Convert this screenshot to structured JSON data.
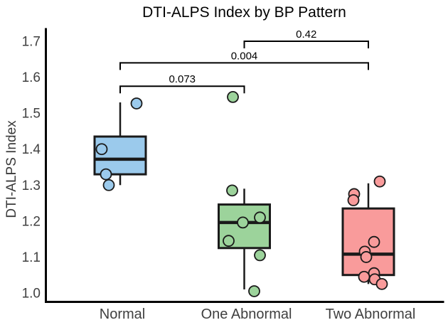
{
  "chart_data": {
    "type": "boxplot",
    "title": "DTI-ALPS Index by BP Pattern",
    "xlabel": "",
    "ylabel": "DTI-ALPS Index",
    "ylim": [
      1.0,
      1.7
    ],
    "yticks": [
      1.0,
      1.1,
      1.2,
      1.3,
      1.4,
      1.5,
      1.6,
      1.7
    ],
    "grid": false,
    "legend": false,
    "categories": [
      "Normal",
      "One Abnormal",
      "Two Abnormal"
    ],
    "boxes": [
      {
        "category": "Normal",
        "color": "#9BCAEC",
        "whisker_low": 1.3,
        "q1": 1.33,
        "median": 1.372,
        "q3": 1.435,
        "whisker_high": 1.53,
        "points": [
          {
            "v": 1.527,
            "dx": 23
          },
          {
            "v": 1.4,
            "dx": -26
          },
          {
            "v": 1.33,
            "dx": -20
          },
          {
            "v": 1.3,
            "dx": -16
          }
        ]
      },
      {
        "category": "One Abnormal",
        "color": "#9CD39B",
        "whisker_low": 1.01,
        "q1": 1.125,
        "median": 1.196,
        "q3": 1.246,
        "whisker_high": 1.29,
        "points": [
          {
            "v": 1.545,
            "dx": -16
          },
          {
            "v": 1.285,
            "dx": -17
          },
          {
            "v": 1.21,
            "dx": 22
          },
          {
            "v": 1.196,
            "dx": -2
          },
          {
            "v": 1.145,
            "dx": -22
          },
          {
            "v": 1.105,
            "dx": 22
          },
          {
            "v": 1.005,
            "dx": 14
          }
        ]
      },
      {
        "category": "Two Abnormal",
        "color": "#F99B9B",
        "whisker_low": 1.025,
        "q1": 1.05,
        "median": 1.108,
        "q3": 1.235,
        "whisker_high": 1.305,
        "points": [
          {
            "v": 1.31,
            "dx": 16
          },
          {
            "v": 1.275,
            "dx": -20
          },
          {
            "v": 1.258,
            "dx": -21
          },
          {
            "v": 1.142,
            "dx": 8
          },
          {
            "v": 1.115,
            "dx": -5
          },
          {
            "v": 1.1,
            "dx": -3
          },
          {
            "v": 1.055,
            "dx": 8
          },
          {
            "v": 1.045,
            "dx": -6
          },
          {
            "v": 1.038,
            "dx": 9
          },
          {
            "v": 1.025,
            "dx": 19
          }
        ]
      }
    ],
    "comparisons": [
      {
        "label": "0.073",
        "from": 0,
        "to": 1,
        "height": 1.575
      },
      {
        "label": "0.004",
        "from": 0,
        "to": 2,
        "height": 1.64
      },
      {
        "label": "0.42",
        "from": 1,
        "to": 2,
        "height": 1.7
      }
    ],
    "colors": {
      "normal_fill": "#9BCAEC",
      "one_abnormal_fill": "#9CD39B",
      "two_abnormal_fill": "#F99B9B",
      "line": "#1a1a1a",
      "tick_text": "#404040",
      "title_text": "#000000"
    }
  }
}
